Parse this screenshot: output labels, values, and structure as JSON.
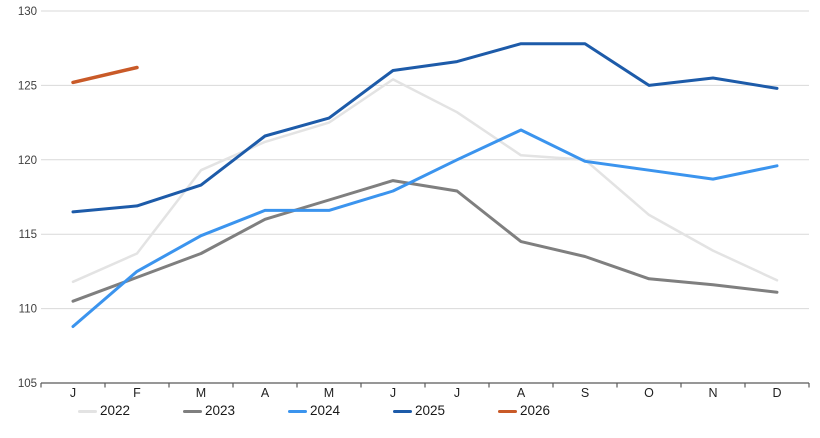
{
  "chart_data": {
    "type": "line",
    "title": "",
    "xlabel": "",
    "ylabel": "",
    "ylim": [
      105,
      130
    ],
    "grid": "horizontal",
    "legend_position": "bottom",
    "x_categories": [
      "J",
      "F",
      "M",
      "A",
      "M",
      "J",
      "J",
      "A",
      "S",
      "O",
      "N",
      "D"
    ],
    "y_ticks": [
      105,
      110,
      115,
      120,
      125,
      130
    ],
    "series": [
      {
        "name": "2022",
        "color": "#E3E3E3",
        "stroke_width": 2.5,
        "values": [
          111.8,
          113.7,
          119.3,
          121.2,
          122.5,
          125.4,
          123.2,
          120.3,
          120.0,
          116.3,
          113.9,
          111.9
        ]
      },
      {
        "name": "2023",
        "color": "#7F7F7F",
        "stroke_width": 3,
        "values": [
          110.5,
          112.1,
          113.7,
          116.0,
          117.3,
          118.6,
          117.9,
          114.5,
          113.5,
          112.0,
          111.6,
          111.1
        ]
      },
      {
        "name": "2024",
        "color": "#3B94EE",
        "stroke_width": 3,
        "values": [
          108.8,
          112.5,
          114.9,
          116.6,
          116.6,
          117.9,
          120.0,
          122.0,
          119.9,
          119.3,
          118.7,
          119.6
        ]
      },
      {
        "name": "2025",
        "color": "#1D5BA9",
        "stroke_width": 3,
        "values": [
          116.5,
          116.9,
          118.3,
          121.6,
          122.8,
          126.0,
          126.6,
          127.8,
          127.8,
          125.0,
          125.5,
          124.8
        ]
      },
      {
        "name": "2026",
        "color": "#C95A28",
        "stroke_width": 3.5,
        "values": [
          125.2,
          126.2,
          null,
          null,
          null,
          null,
          null,
          null,
          null,
          null,
          null,
          null
        ]
      }
    ],
    "legend": [
      "2022",
      "2023",
      "2024",
      "2025",
      "2026"
    ],
    "axis_color": "#595959",
    "gridline_color": "#D9D9D9"
  }
}
